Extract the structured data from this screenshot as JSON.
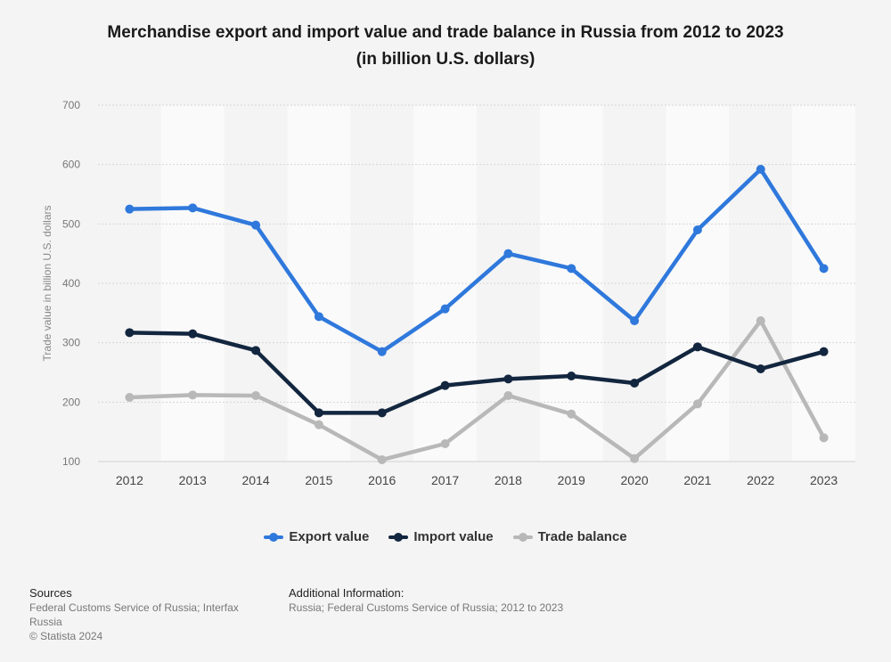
{
  "title_line1": "Merchandise export and import value and trade balance in Russia from 2012 to 2023",
  "title_line2": "(in billion U.S. dollars)",
  "chart_data": {
    "type": "line",
    "categories": [
      "2012",
      "2013",
      "2014",
      "2015",
      "2016",
      "2017",
      "2018",
      "2019",
      "2020",
      "2021",
      "2022",
      "2023"
    ],
    "ylabel": "Trade value in billion U.S. dollars",
    "ylim": [
      100,
      700
    ],
    "yticks": [
      100,
      200,
      300,
      400,
      500,
      600,
      700
    ],
    "grid": true,
    "legend_position": "bottom",
    "series": [
      {
        "name": "Export value",
        "color": "#2f78dc",
        "values": [
          525,
          527,
          498,
          344,
          285,
          357,
          450,
          425,
          337,
          490,
          592,
          425
        ]
      },
      {
        "name": "Import value",
        "color": "#13263f",
        "values": [
          317,
          315,
          287,
          182,
          182,
          228,
          239,
          244,
          232,
          293,
          256,
          285
        ]
      },
      {
        "name": "Trade balance",
        "color": "#b8b8b8",
        "values": [
          208,
          212,
          211,
          162,
          103,
          130,
          211,
          180,
          105,
          197,
          337,
          140
        ]
      }
    ]
  },
  "legend": {
    "export_label": "Export value",
    "import_label": "Import value",
    "balance_label": "Trade balance"
  },
  "footer": {
    "sources_head": "Sources",
    "sources_text": "Federal Customs Service of Russia; Interfax Russia",
    "copyright": "© Statista 2024",
    "additional_head": "Additional Information:",
    "additional_text": "Russia; Federal Customs Service of Russia; 2012 to 2023"
  }
}
